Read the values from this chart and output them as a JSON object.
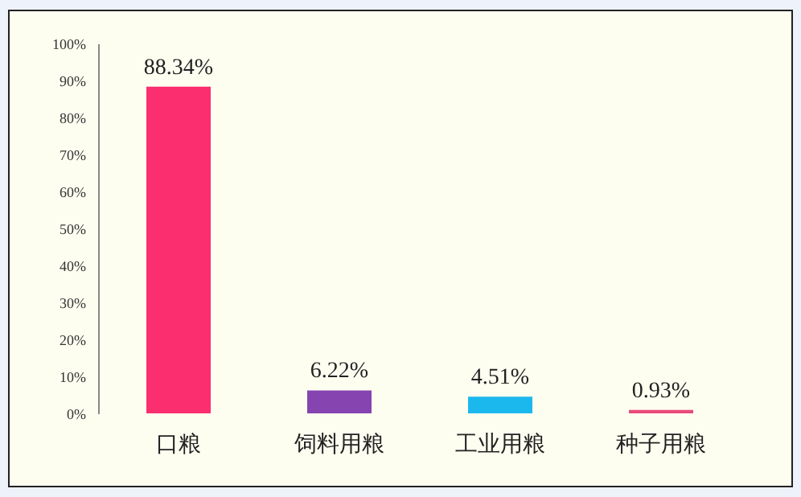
{
  "chart_data": {
    "type": "bar",
    "categories": [
      "口粮",
      "饲料用粮",
      "工业用粮",
      "种子用粮"
    ],
    "values": [
      88.34,
      6.22,
      4.51,
      0.93
    ],
    "colors": [
      "#fb2e70",
      "#8544b0",
      "#1bb8ee",
      "#e94a7c"
    ],
    "value_labels": [
      "88.34%",
      "6.22%",
      "4.51%",
      "0.93%"
    ],
    "ylim": [
      0,
      100
    ],
    "yticks": [
      {
        "value": 0,
        "label": "0%"
      },
      {
        "value": 10,
        "label": "10%"
      },
      {
        "value": 20,
        "label": "20%"
      },
      {
        "value": 30,
        "label": "30%"
      },
      {
        "value": 40,
        "label": "40%"
      },
      {
        "value": 50,
        "label": "50%"
      },
      {
        "value": 60,
        "label": "60%"
      },
      {
        "value": 70,
        "label": "70%"
      },
      {
        "value": 80,
        "label": "80%"
      },
      {
        "value": 90,
        "label": "90%"
      },
      {
        "value": 100,
        "label": "100%"
      }
    ],
    "grid": false
  }
}
